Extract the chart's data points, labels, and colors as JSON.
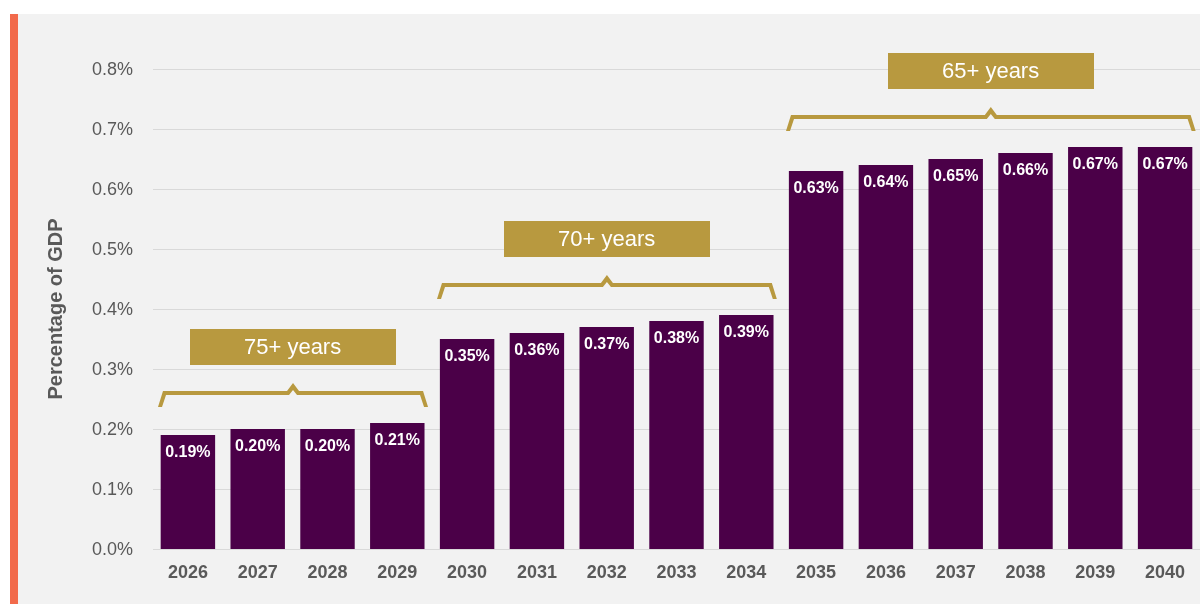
{
  "chart_data": {
    "type": "bar",
    "ylabel": "Percentage of GDP",
    "categories": [
      "2026",
      "2027",
      "2028",
      "2029",
      "2030",
      "2031",
      "2032",
      "2033",
      "2034",
      "2035",
      "2036",
      "2037",
      "2038",
      "2039",
      "2040"
    ],
    "values": [
      0.19,
      0.2,
      0.2,
      0.21,
      0.35,
      0.36,
      0.37,
      0.38,
      0.39,
      0.63,
      0.64,
      0.65,
      0.66,
      0.67,
      0.67
    ],
    "value_labels": [
      "0.19%",
      "0.20%",
      "0.20%",
      "0.21%",
      "0.35%",
      "0.36%",
      "0.37%",
      "0.38%",
      "0.39%",
      "0.63%",
      "0.64%",
      "0.65%",
      "0.66%",
      "0.67%",
      "0.67%"
    ],
    "color": "#4b0048",
    "ylim": [
      0,
      0.8
    ],
    "yticks": [
      {
        "value": 0,
        "label": "0.0%"
      },
      {
        "value": 0.1,
        "label": "0.1%"
      },
      {
        "value": 0.2,
        "label": "0.2%"
      },
      {
        "value": 0.3,
        "label": "0.3%"
      },
      {
        "value": 0.4,
        "label": "0.4%"
      },
      {
        "value": 0.5,
        "label": "0.5%"
      },
      {
        "value": 0.6,
        "label": "0.6%"
      },
      {
        "value": 0.7,
        "label": "0.7%"
      },
      {
        "value": 0.8,
        "label": "0.8%"
      }
    ],
    "grid": "y",
    "annotations": [
      "75+ years",
      "70+ years",
      "65+ years"
    ]
  }
}
